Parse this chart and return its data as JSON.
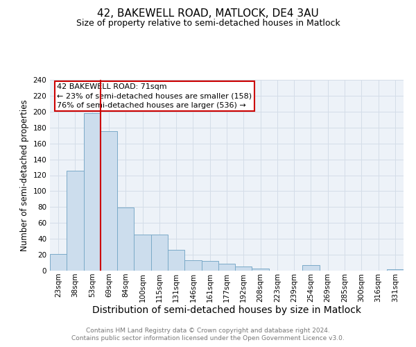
{
  "title": "42, BAKEWELL ROAD, MATLOCK, DE4 3AU",
  "subtitle": "Size of property relative to semi-detached houses in Matlock",
  "xlabel": "Distribution of semi-detached houses by size in Matlock",
  "ylabel": "Number of semi-detached properties",
  "annotation_title": "42 BAKEWELL ROAD: 71sqm",
  "annotation_line1": "← 23% of semi-detached houses are smaller (158)",
  "annotation_line2": "76% of semi-detached houses are larger (536) →",
  "categories": [
    "23sqm",
    "38sqm",
    "53sqm",
    "69sqm",
    "84sqm",
    "100sqm",
    "115sqm",
    "131sqm",
    "146sqm",
    "161sqm",
    "177sqm",
    "192sqm",
    "208sqm",
    "223sqm",
    "239sqm",
    "254sqm",
    "269sqm",
    "285sqm",
    "300sqm",
    "316sqm",
    "331sqm"
  ],
  "values": [
    21,
    126,
    198,
    175,
    79,
    45,
    45,
    26,
    13,
    12,
    9,
    5,
    3,
    0,
    0,
    7,
    0,
    0,
    0,
    0,
    2
  ],
  "bar_color": "#ccdded",
  "bar_edge_color": "#7aaac8",
  "vline_color": "#cc0000",
  "vline_x_index": 3,
  "ylim": [
    0,
    240
  ],
  "yticks": [
    0,
    20,
    40,
    60,
    80,
    100,
    120,
    140,
    160,
    180,
    200,
    220,
    240
  ],
  "grid_color": "#d4dde8",
  "background_color": "#edf2f8",
  "title_fontsize": 11,
  "subtitle_fontsize": 9,
  "xlabel_fontsize": 10,
  "ylabel_fontsize": 8.5,
  "tick_fontsize": 7.5,
  "annotation_fontsize": 8,
  "footer_text": "Contains HM Land Registry data © Crown copyright and database right 2024.\nContains public sector information licensed under the Open Government Licence v3.0.",
  "footer_fontsize": 6.5
}
